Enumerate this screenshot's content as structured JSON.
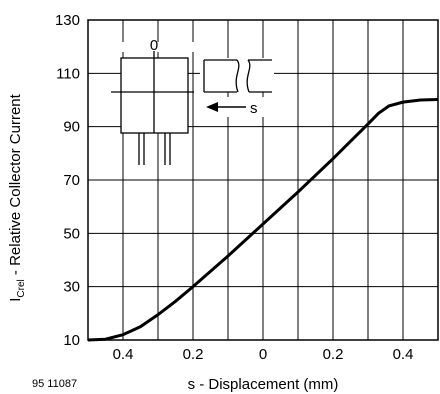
{
  "figure_id": "95 11087",
  "chart_data": {
    "type": "line",
    "xlabel": "s - Displacement (mm)",
    "ylabel": {
      "prefix": "I",
      "subscript": "Crel",
      "suffix": " - Relative Collector Current"
    },
    "x_tick_labels": [
      "0.4",
      "0.2",
      "0",
      "0.2",
      "0.4"
    ],
    "x_tick_values": [
      -0.4,
      -0.2,
      0,
      0.2,
      0.4
    ],
    "xlim": [
      -0.5,
      0.5
    ],
    "ylim": [
      10,
      130
    ],
    "y_ticks": [
      10,
      30,
      50,
      70,
      90,
      110,
      130
    ],
    "grid": true,
    "series": [
      {
        "x": [
          -0.5,
          -0.45,
          -0.4,
          -0.35,
          -0.3,
          -0.25,
          -0.2,
          -0.1,
          0.0,
          0.1,
          0.2,
          0.25,
          0.3,
          0.33,
          0.36,
          0.4,
          0.45,
          0.5
        ],
        "y": [
          10,
          10.3,
          12,
          15,
          19.5,
          24.5,
          30,
          41.5,
          53.5,
          65.5,
          78,
          84.5,
          91,
          95,
          97.8,
          99.2,
          100,
          100.2
        ]
      }
    ],
    "inset": {
      "zero_label": "0",
      "arrow_label": "s"
    }
  }
}
